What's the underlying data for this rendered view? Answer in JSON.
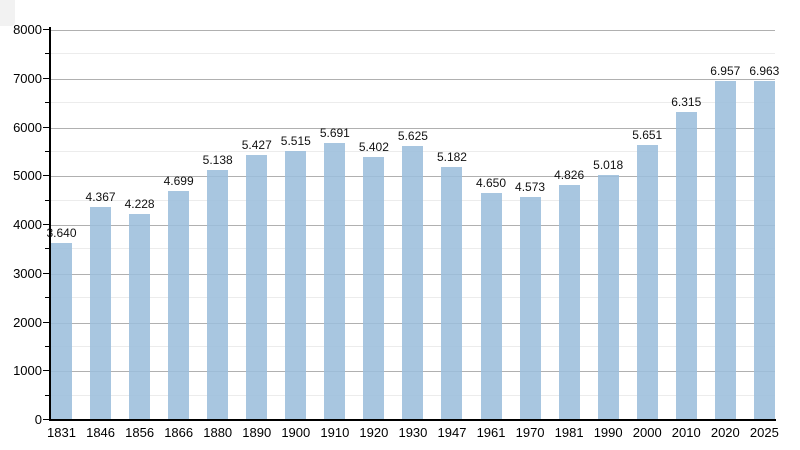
{
  "chart_data": {
    "type": "bar",
    "title": "",
    "xlabel": "",
    "ylabel": "",
    "categories": [
      "1831",
      "1846",
      "1856",
      "1866",
      "1880",
      "1890",
      "1900",
      "1910",
      "1920",
      "1930",
      "1947",
      "1961",
      "1970",
      "1981",
      "1990",
      "2000",
      "2010",
      "2020",
      "2025"
    ],
    "values": [
      3640,
      4367,
      4228,
      4699,
      5138,
      5427,
      5515,
      5691,
      5402,
      5625,
      5182,
      4650,
      4573,
      4826,
      5018,
      5651,
      6315,
      6957,
      6963
    ],
    "value_labels": [
      "3.640",
      "4.367",
      "4.228",
      "4.699",
      "5.138",
      "5.427",
      "5.515",
      "5.691",
      "5.402",
      "5.625",
      "5.182",
      "4.650",
      "4.573",
      "4.826",
      "5.018",
      "5.651",
      "6.315",
      "6.957",
      "6.963"
    ],
    "ylim": [
      0,
      8000
    ],
    "y_tick_step": 1000,
    "y_minor_step": 500,
    "y_tick_labels": [
      "0",
      "1000",
      "2000",
      "3000",
      "4000",
      "5000",
      "6000",
      "7000",
      "8000"
    ],
    "grid": true,
    "legend": "none",
    "colors": {
      "bar_fill": "#9bbddb",
      "bar_opacity": 0.87,
      "gridline_major": "#b0b0b0",
      "gridline_minor": "#ececec",
      "axis": "#000000",
      "label_text": "#111111",
      "background": "#ffffff"
    }
  }
}
